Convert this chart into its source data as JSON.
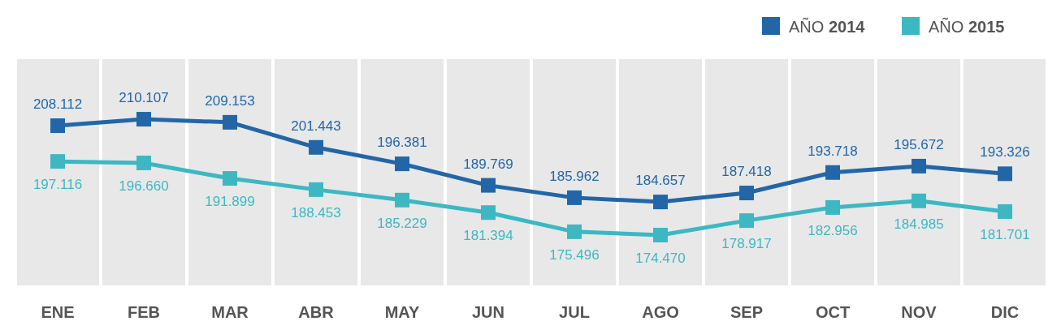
{
  "chart_data": {
    "type": "line",
    "categories": [
      "ENE",
      "FEB",
      "MAR",
      "ABR",
      "MAY",
      "JUN",
      "JUL",
      "AGO",
      "SEP",
      "OCT",
      "NOV",
      "DIC"
    ],
    "series": [
      {
        "name": "AÑO 2014",
        "color": "#2366a8",
        "values": [
          208112,
          210107,
          209153,
          201443,
          196381,
          189769,
          185962,
          184657,
          187418,
          193718,
          195672,
          193326
        ],
        "value_labels": [
          "208.112",
          "210.107",
          "209.153",
          "201.443",
          "196.381",
          "189.769",
          "185.962",
          "184.657",
          "187.418",
          "193.718",
          "195.672",
          "193.326"
        ]
      },
      {
        "name": "AÑO 2015",
        "color": "#3db8c3",
        "values": [
          197116,
          196660,
          191899,
          188453,
          185229,
          181394,
          175496,
          174470,
          178917,
          182956,
          184985,
          181701
        ],
        "value_labels": [
          "197.116",
          "196.660",
          "191.899",
          "188.453",
          "185.229",
          "181.394",
          "175.496",
          "174.470",
          "178.917",
          "182.956",
          "184.985",
          "181.701"
        ]
      }
    ],
    "marker": "square",
    "legend": "top right",
    "grid": false
  }
}
